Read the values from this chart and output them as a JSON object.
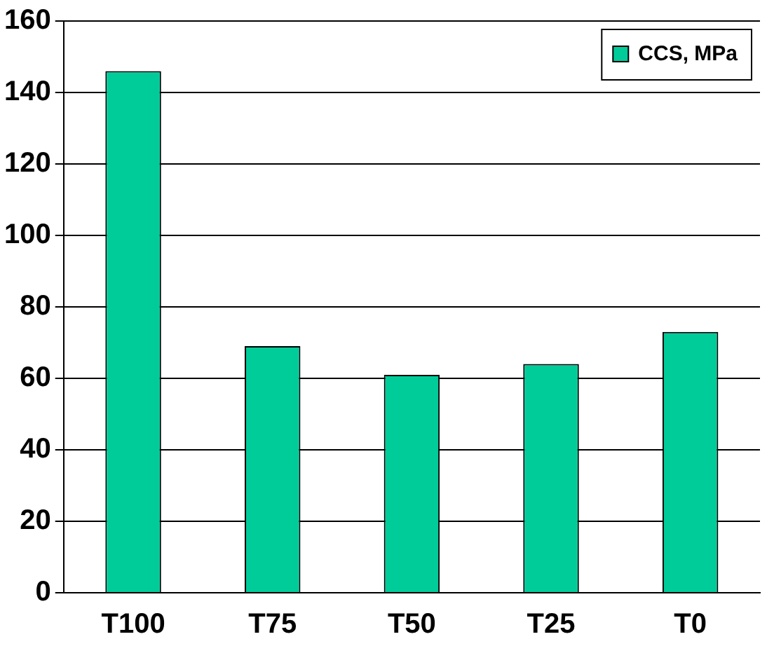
{
  "chart_data": {
    "type": "bar",
    "categories": [
      "T100",
      "T75",
      "T50",
      "T25",
      "T0"
    ],
    "series": [
      {
        "name": "CCS, MPa",
        "color": "#00cc99",
        "values": [
          146,
          69,
          61,
          64,
          73
        ]
      }
    ],
    "ylim": [
      0,
      160
    ],
    "yticks": [
      0,
      20,
      40,
      60,
      80,
      100,
      120,
      140,
      160
    ],
    "grid": "y",
    "legend": "top right"
  }
}
